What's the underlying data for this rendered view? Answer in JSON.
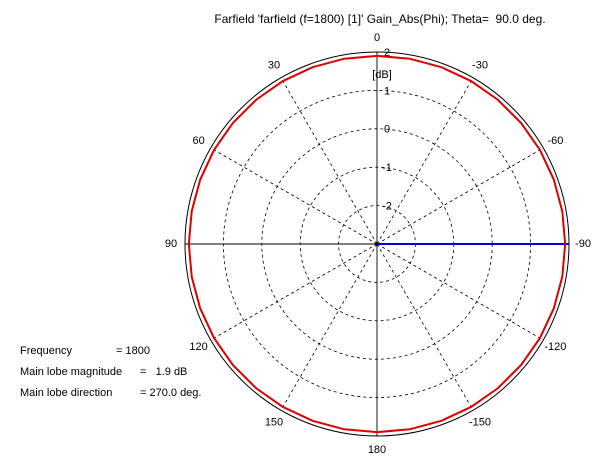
{
  "chart_data": {
    "type": "polar",
    "title": "Farfield 'farfield (f=1800) [1]' Gain_Abs(Phi); Theta=  90.0 deg.",
    "r_label": "[dB]",
    "rlim": [
      -3,
      2
    ],
    "rticks": [
      -2,
      -1,
      0,
      1,
      2
    ],
    "thetaticks": [
      0,
      30,
      60,
      90,
      120,
      150,
      180,
      -150,
      -120,
      -90,
      -60,
      -30
    ],
    "grid": true,
    "series": [
      {
        "name": "Gain_Abs(Phi)",
        "color": "#e00000",
        "theta": [
          0,
          10,
          20,
          30,
          40,
          50,
          60,
          70,
          80,
          90,
          100,
          110,
          120,
          130,
          140,
          150,
          160,
          170,
          180,
          190,
          200,
          210,
          220,
          230,
          240,
          250,
          260,
          270,
          280,
          290,
          300,
          310,
          320,
          330,
          340,
          350,
          360
        ],
        "values": [
          1.9,
          1.9,
          1.9,
          1.9,
          1.9,
          1.9,
          1.9,
          1.9,
          1.9,
          1.9,
          1.9,
          1.9,
          1.9,
          1.9,
          1.9,
          1.9,
          1.9,
          1.9,
          1.9,
          1.9,
          1.9,
          1.9,
          1.9,
          1.9,
          1.9,
          1.9,
          1.9,
          1.9,
          1.9,
          1.9,
          1.9,
          1.9,
          1.9,
          1.9,
          1.9,
          1.9,
          1.9
        ]
      }
    ],
    "main_lobe_direction": 270,
    "main_lobe_color": "#0000e0",
    "annotations": [
      {
        "label": "Frequency",
        "value": "= 1800"
      },
      {
        "label": "Main lobe magnitude",
        "value": "=   1.9 dB"
      },
      {
        "label": "Main lobe direction",
        "value": "= 270.0 deg."
      }
    ]
  }
}
